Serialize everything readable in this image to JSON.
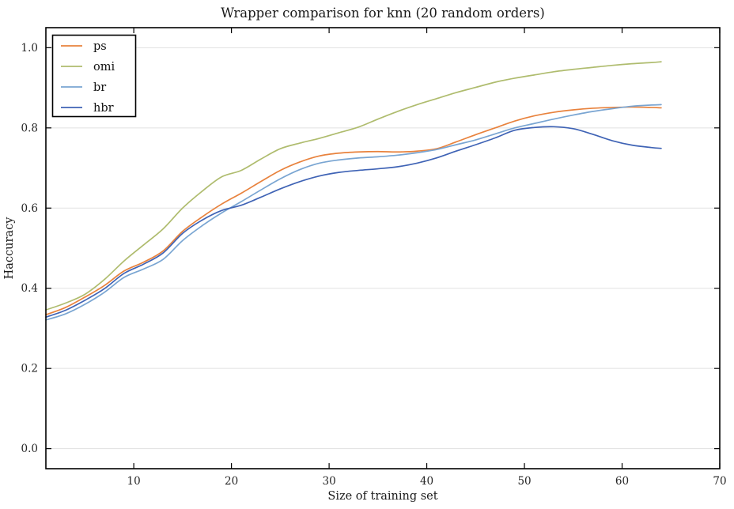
{
  "title": "Wrapper comparison for knn (20 random orders)",
  "axes": {
    "xlabel": "Size of training set",
    "ylabel": "Haccuracy",
    "x_tick_labels": [
      "10",
      "20",
      "30",
      "40",
      "50",
      "60",
      "70"
    ],
    "y_tick_labels": [
      "0.0",
      "0.2",
      "0.4",
      "0.6",
      "0.8",
      "1.0"
    ]
  },
  "legend": {
    "entries": [
      "ps",
      "omi",
      "br",
      "hbr"
    ],
    "position": "upper-left"
  },
  "colors": {
    "ps": "#E8823D",
    "omi": "#AFBC6E",
    "br": "#79A5D2",
    "hbr": "#3F63B5",
    "grid": "#e1e1e1",
    "spine": "#000000",
    "background": "#ffffff"
  },
  "chart_data": {
    "type": "line",
    "title": "Wrapper comparison for knn (20 random orders)",
    "xlabel": "Size of training set",
    "ylabel": "Haccuracy",
    "xlim": [
      1,
      70
    ],
    "ylim": [
      -0.05,
      1.05
    ],
    "xticks": [
      10,
      20,
      30,
      40,
      50,
      60,
      70
    ],
    "yticks": [
      0.0,
      0.2,
      0.4,
      0.6,
      0.8,
      1.0
    ],
    "grid": "horizontal-only",
    "legend_position": "upper-left",
    "x": [
      1,
      3,
      5,
      7,
      9,
      11,
      13,
      15,
      17,
      19,
      21,
      23,
      25,
      27,
      29,
      31,
      33,
      35,
      37,
      39,
      41,
      43,
      45,
      47,
      49,
      51,
      53,
      55,
      57,
      59,
      61,
      63,
      64
    ],
    "series": [
      {
        "name": "ps",
        "color": "#E8823D",
        "values": [
          0.334,
          0.352,
          0.378,
          0.407,
          0.443,
          0.465,
          0.493,
          0.542,
          0.578,
          0.61,
          0.637,
          0.666,
          0.694,
          0.715,
          0.73,
          0.737,
          0.74,
          0.741,
          0.74,
          0.742,
          0.748,
          0.765,
          0.783,
          0.8,
          0.817,
          0.83,
          0.839,
          0.845,
          0.849,
          0.851,
          0.852,
          0.851,
          0.85
        ]
      },
      {
        "name": "omi",
        "color": "#AFBC6E",
        "values": [
          0.346,
          0.363,
          0.385,
          0.422,
          0.468,
          0.508,
          0.548,
          0.6,
          0.642,
          0.678,
          0.694,
          0.722,
          0.748,
          0.762,
          0.774,
          0.788,
          0.802,
          0.822,
          0.841,
          0.858,
          0.873,
          0.888,
          0.901,
          0.914,
          0.924,
          0.932,
          0.94,
          0.946,
          0.951,
          0.956,
          0.96,
          0.963,
          0.965
        ]
      },
      {
        "name": "br",
        "color": "#79A5D2",
        "values": [
          0.321,
          0.336,
          0.36,
          0.39,
          0.427,
          0.448,
          0.472,
          0.519,
          0.556,
          0.588,
          0.616,
          0.645,
          0.673,
          0.696,
          0.712,
          0.72,
          0.725,
          0.728,
          0.732,
          0.738,
          0.746,
          0.758,
          0.77,
          0.785,
          0.8,
          0.811,
          0.822,
          0.832,
          0.841,
          0.848,
          0.854,
          0.857,
          0.858
        ]
      },
      {
        "name": "hbr",
        "color": "#3F63B5",
        "values": [
          0.328,
          0.345,
          0.37,
          0.399,
          0.437,
          0.46,
          0.488,
          0.537,
          0.57,
          0.594,
          0.607,
          0.627,
          0.648,
          0.666,
          0.68,
          0.689,
          0.694,
          0.698,
          0.703,
          0.712,
          0.725,
          0.742,
          0.758,
          0.775,
          0.794,
          0.801,
          0.803,
          0.798,
          0.784,
          0.768,
          0.757,
          0.751,
          0.749
        ]
      }
    ]
  }
}
